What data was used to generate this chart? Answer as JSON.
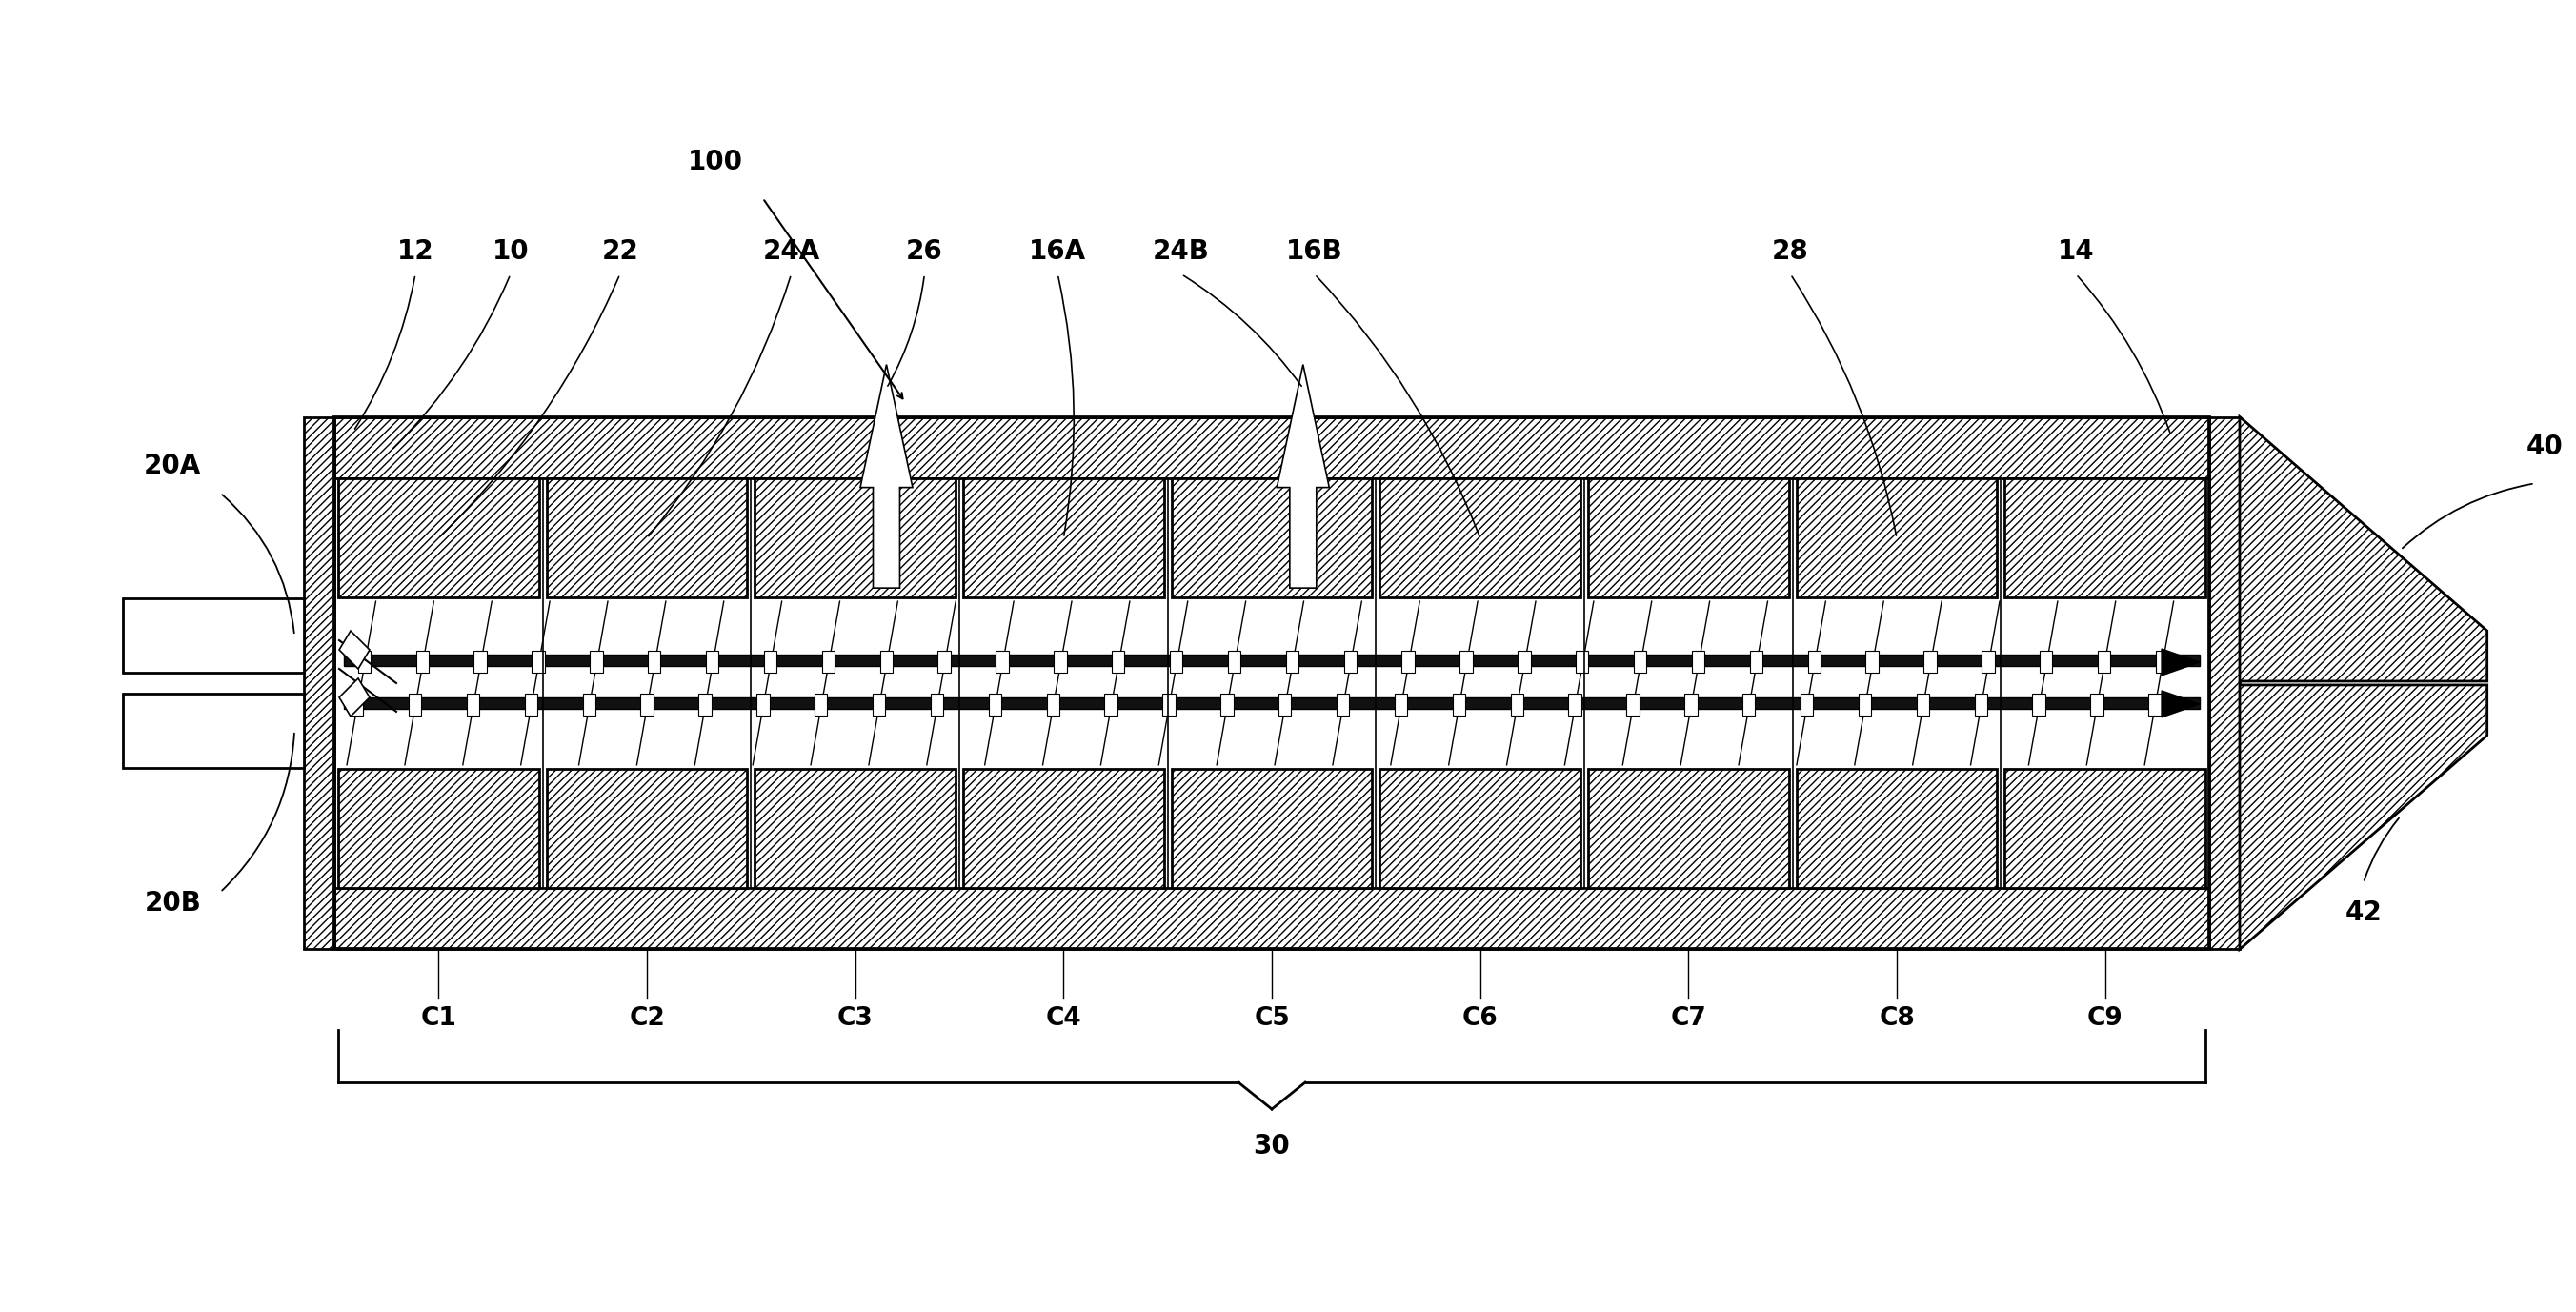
{
  "fig_width": 27.04,
  "fig_height": 13.77,
  "bg_color": "#ffffff",
  "labels_top": [
    "12",
    "10",
    "22",
    "24A",
    "26",
    "16A",
    "24B",
    "16B",
    "28",
    "14"
  ],
  "labels_left": [
    "20A",
    "20B"
  ],
  "labels_right": [
    "40",
    "42"
  ],
  "labels_bottom_C": [
    "C1",
    "C2",
    "C3",
    "C4",
    "C5",
    "C6",
    "C7",
    "C8",
    "C9"
  ],
  "label_30": "30",
  "label_100": "100",
  "font_size": 20,
  "num_segments": 9
}
